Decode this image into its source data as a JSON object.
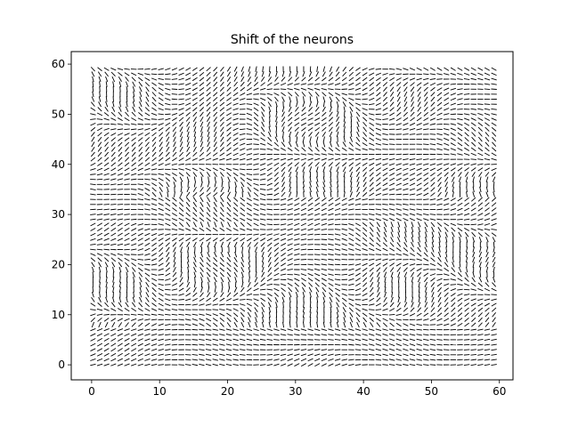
{
  "chart_data": {
    "type": "quiver",
    "title": "Shift of the neurons",
    "xlabel": "",
    "ylabel": "",
    "xlim": [
      -3,
      62
    ],
    "ylim": [
      -3,
      62.5
    ],
    "xticks": [
      0,
      10,
      20,
      30,
      40,
      50,
      60
    ],
    "yticks": [
      0,
      10,
      20,
      30,
      40,
      50,
      60
    ],
    "xtick_labels": [
      "0",
      "10",
      "20",
      "30",
      "40",
      "50",
      "60"
    ],
    "ytick_labels": [
      "0",
      "10",
      "20",
      "30",
      "40",
      "50",
      "60"
    ],
    "grid": false,
    "legend": "none",
    "field": {
      "x_range": [
        0,
        59
      ],
      "y_range": [
        0,
        59
      ],
      "step": 1,
      "vector_magnitude": 1.0,
      "description_values": {
        "mostly_horizontal_bands_y": [
          [
            0,
            8
          ],
          [
            29,
            33
          ],
          [
            40,
            48
          ]
        ],
        "mostly_vertical_bands_x": [
          [
            11,
            13
          ],
          [
            20,
            27
          ],
          [
            30,
            36
          ],
          [
            44,
            49
          ]
        ]
      }
    },
    "arrow_color": "#000000"
  }
}
